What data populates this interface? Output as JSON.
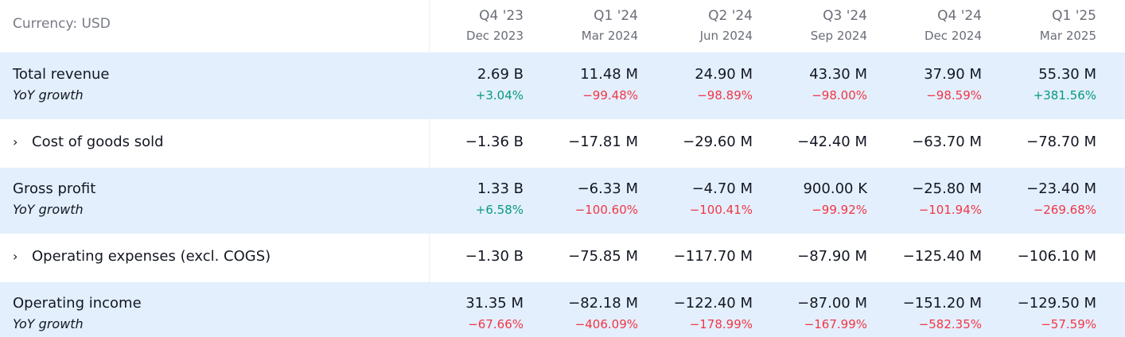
{
  "header": {
    "currency_label": "Currency: USD",
    "periods": [
      {
        "quarter": "Q4 '23",
        "date": "Dec 2023"
      },
      {
        "quarter": "Q1 '24",
        "date": "Mar 2024"
      },
      {
        "quarter": "Q2 '24",
        "date": "Jun 2024"
      },
      {
        "quarter": "Q3 '24",
        "date": "Sep 2024"
      },
      {
        "quarter": "Q4 '24",
        "date": "Dec 2024"
      },
      {
        "quarter": "Q1 '25",
        "date": "Mar 2025"
      }
    ]
  },
  "rows": {
    "total_revenue": {
      "label": "Total revenue",
      "sub_label": "YoY growth",
      "values": [
        "2.69 B",
        "11.48 M",
        "24.90 M",
        "43.30 M",
        "37.90 M",
        "55.30 M"
      ],
      "growth": [
        "+3.04%",
        "−99.48%",
        "−98.89%",
        "−98.00%",
        "−98.59%",
        "+381.56%"
      ]
    },
    "cogs": {
      "label": "Cost of goods sold",
      "chevron": "›",
      "values": [
        "−1.36 B",
        "−17.81 M",
        "−29.60 M",
        "−42.40 M",
        "−63.70 M",
        "−78.70 M"
      ]
    },
    "gross_profit": {
      "label": "Gross profit",
      "sub_label": "YoY growth",
      "values": [
        "1.33 B",
        "−6.33 M",
        "−4.70 M",
        "900.00 K",
        "−25.80 M",
        "−23.40 M"
      ],
      "growth": [
        "+6.58%",
        "−100.60%",
        "−100.41%",
        "−99.92%",
        "−101.94%",
        "−269.68%"
      ]
    },
    "opex": {
      "label": "Operating expenses (excl. COGS)",
      "chevron": "›",
      "values": [
        "−1.30 B",
        "−75.85 M",
        "−117.70 M",
        "−87.90 M",
        "−125.40 M",
        "−106.10 M"
      ]
    },
    "operating_income": {
      "label": "Operating income",
      "sub_label": "YoY growth",
      "values": [
        "31.35 M",
        "−82.18 M",
        "−122.40 M",
        "−87.00 M",
        "−151.20 M",
        "−129.50 M"
      ],
      "growth": [
        "−67.66%",
        "−406.09%",
        "−178.99%",
        "−167.99%",
        "−582.35%",
        "−57.59%"
      ]
    }
  },
  "colors": {
    "highlight_row": "#e3effd",
    "positive": "#089981",
    "negative": "#f23645"
  }
}
